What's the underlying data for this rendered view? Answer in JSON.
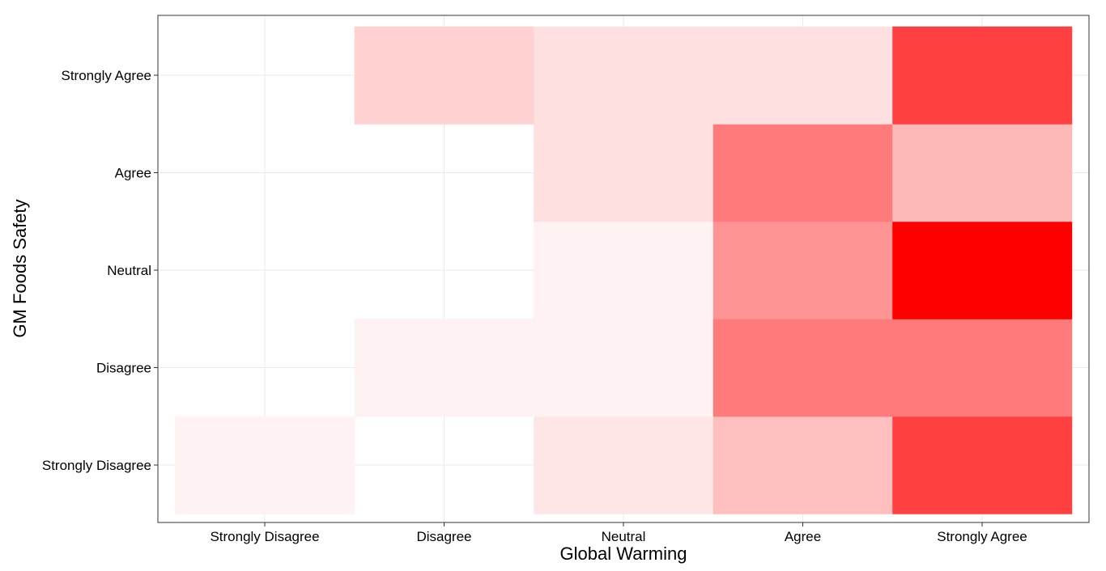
{
  "chart_data": {
    "type": "heatmap",
    "title": "",
    "xlabel": "Global Warming",
    "ylabel": "GM Foods Safety",
    "x_categories": [
      "Strongly Disagree",
      "Disagree",
      "Neutral",
      "Agree",
      "Strongly Agree"
    ],
    "y_categories": [
      "Strongly Disagree",
      "Disagree",
      "Neutral",
      "Agree",
      "Strongly Agree"
    ],
    "cells": [
      {
        "x": "Strongly Disagree",
        "y": "Strongly Disagree",
        "value": 0.05
      },
      {
        "x": "Disagree",
        "y": "Strongly Disagree",
        "value": 0
      },
      {
        "x": "Neutral",
        "y": "Strongly Disagree",
        "value": 0.1
      },
      {
        "x": "Agree",
        "y": "Strongly Disagree",
        "value": 0.25
      },
      {
        "x": "Strongly Agree",
        "y": "Strongly Disagree",
        "value": 0.75
      },
      {
        "x": "Strongly Disagree",
        "y": "Disagree",
        "value": 0
      },
      {
        "x": "Disagree",
        "y": "Disagree",
        "value": 0.05
      },
      {
        "x": "Neutral",
        "y": "Disagree",
        "value": 0.05
      },
      {
        "x": "Agree",
        "y": "Disagree",
        "value": 0.52
      },
      {
        "x": "Strongly Agree",
        "y": "Disagree",
        "value": 0.52
      },
      {
        "x": "Strongly Disagree",
        "y": "Neutral",
        "value": 0
      },
      {
        "x": "Disagree",
        "y": "Neutral",
        "value": 0
      },
      {
        "x": "Neutral",
        "y": "Neutral",
        "value": 0.05
      },
      {
        "x": "Agree",
        "y": "Neutral",
        "value": 0.42
      },
      {
        "x": "Strongly Agree",
        "y": "Neutral",
        "value": 1.0
      },
      {
        "x": "Strongly Disagree",
        "y": "Agree",
        "value": 0
      },
      {
        "x": "Disagree",
        "y": "Agree",
        "value": 0
      },
      {
        "x": "Neutral",
        "y": "Agree",
        "value": 0.12
      },
      {
        "x": "Agree",
        "y": "Agree",
        "value": 0.52
      },
      {
        "x": "Strongly Agree",
        "y": "Agree",
        "value": 0.28
      },
      {
        "x": "Strongly Disagree",
        "y": "Strongly Agree",
        "value": 0
      },
      {
        "x": "Disagree",
        "y": "Strongly Agree",
        "value": 0.18
      },
      {
        "x": "Neutral",
        "y": "Strongly Agree",
        "value": 0.12
      },
      {
        "x": "Agree",
        "y": "Strongly Agree",
        "value": 0.12
      },
      {
        "x": "Strongly Agree",
        "y": "Strongly Agree",
        "value": 0.75
      }
    ],
    "color_low": "#ffffff",
    "color_high": "#ff0000",
    "grid": true,
    "legend": "none"
  }
}
